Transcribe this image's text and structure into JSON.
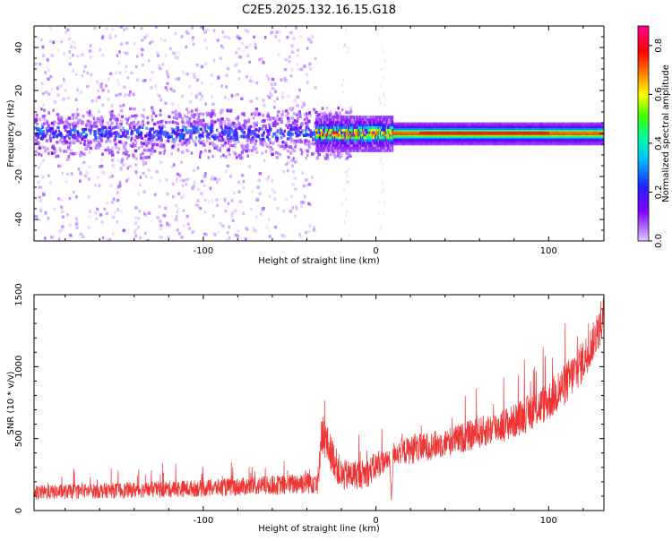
{
  "title": "C2E5.2025.132.16.15.G18",
  "colors": {
    "noise_dots": "#b394f5",
    "core_band": "#6a1be6",
    "snr_line": "#ee3333",
    "colorbar_stops": [
      "#e6c8ff",
      "#8000ff",
      "#2020ff",
      "#00c0ff",
      "#00ff80",
      "#80ff00",
      "#ffff00",
      "#ff8000",
      "#ff0000",
      "#ff0090"
    ]
  },
  "chart_data": [
    {
      "type": "heatmap",
      "xlabel": "Height of straight line (km)",
      "ylabel": "Frequency (Hz)",
      "xlim": [
        -198,
        132
      ],
      "ylim": [
        -50,
        50
      ],
      "xticks": [
        -100,
        0,
        100
      ],
      "xtick_labels": [
        "-100",
        "0",
        "100"
      ],
      "yticks": [
        -40,
        -20,
        0,
        20,
        40
      ],
      "ytick_labels": [
        "-40",
        "-20",
        "0",
        "20",
        "40"
      ],
      "colorbar": {
        "label": "Normalized spectral amplitude",
        "range": [
          0,
          0.88
        ],
        "ticks": [
          0.0,
          0.2,
          0.4,
          0.6,
          0.8
        ],
        "tick_labels": [
          "0.0",
          "0.2",
          "0.4",
          "0.6",
          "0.8"
        ]
      },
      "description_segments": [
        {
          "x_range": [
            -198,
            -35
          ],
          "frequency_spread": [
            -50,
            50
          ],
          "core_band_hz": [
            -10,
            10
          ],
          "peak_amplitude": 0.3
        },
        {
          "x_range": [
            -35,
            10
          ],
          "frequency_spread": [
            -10,
            10
          ],
          "core_band_hz": [
            -3,
            3
          ],
          "peak_amplitude": 0.85
        },
        {
          "x_range": [
            10,
            132
          ],
          "frequency_spread": [
            -5,
            5
          ],
          "core_band_hz": [
            -2,
            2
          ],
          "peak_amplitude": 0.85
        }
      ]
    },
    {
      "type": "line",
      "xlabel": "Height of straight line (km)",
      "ylabel": "SNR (10 * v/v)",
      "xlim": [
        -198,
        132
      ],
      "ylim": [
        0,
        1500
      ],
      "xticks": [
        -100,
        0,
        100
      ],
      "xtick_labels": [
        "-100",
        "0",
        "100"
      ],
      "yticks": [
        0,
        500,
        1000,
        1500
      ],
      "ytick_labels": [
        "0",
        "500",
        "1000",
        "1500"
      ],
      "series": [
        {
          "x": [
            -198,
            -150,
            -100,
            -50,
            -33,
            -32,
            -20,
            -5,
            0,
            5,
            8,
            9,
            10,
            20,
            40,
            60,
            80,
            100,
            110,
            120,
            132
          ],
          "y_mean": [
            125,
            140,
            155,
            180,
            215,
            560,
            240,
            260,
            310,
            345,
            350,
            60,
            400,
            420,
            470,
            540,
            620,
            760,
            880,
            1040,
            1320
          ],
          "y_band": [
            50,
            55,
            60,
            70,
            100,
            150,
            110,
            100,
            100,
            80,
            60,
            40,
            80,
            100,
            100,
            110,
            120,
            140,
            150,
            150,
            120
          ]
        }
      ]
    }
  ]
}
